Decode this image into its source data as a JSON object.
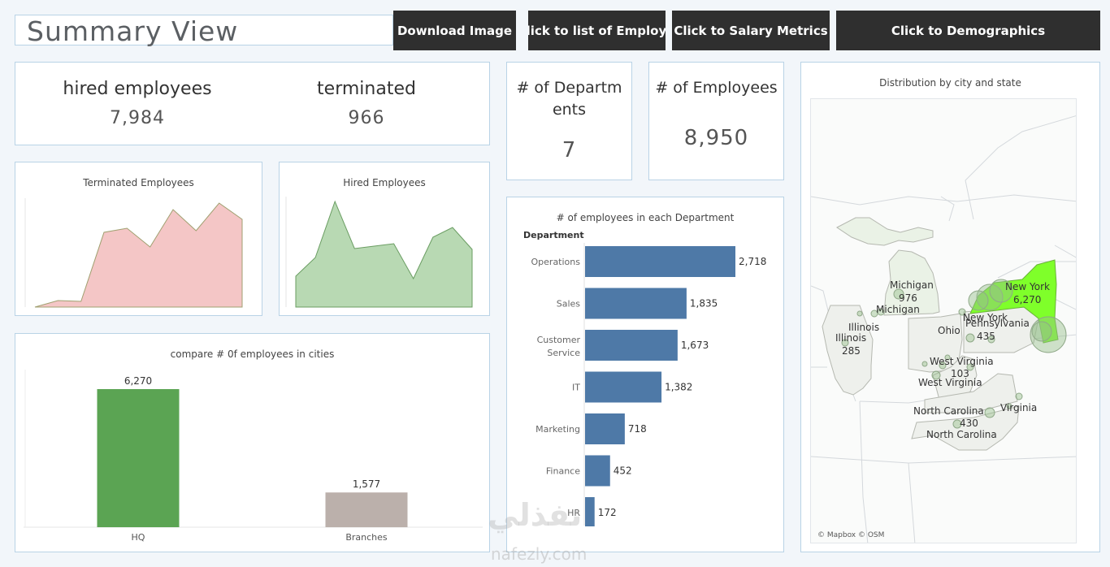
{
  "header": {
    "title": "Summary View",
    "buttons": [
      {
        "label": "Download Image"
      },
      {
        "label": "click to list of Employ.."
      },
      {
        "label": "Click to Salary Metrics"
      },
      {
        "label": "Click to Demographics"
      }
    ]
  },
  "kpis": {
    "hired_label": "hired employees",
    "hired_value": "7,984",
    "terminated_label": "terminated",
    "terminated_value": "966",
    "departments_label_line1": "# of Departm",
    "departments_label_line2": "ents",
    "departments_value": "7",
    "employees_label": "# of Employees",
    "employees_value": "8,950"
  },
  "chart_data": [
    {
      "type": "area",
      "title": "Terminated Employees",
      "values": [
        0,
        8,
        7,
        92,
        97,
        74,
        120,
        94,
        128,
        108
      ],
      "color": "#f4c6c6",
      "stroke": "#a0a070"
    },
    {
      "type": "area",
      "title": "Hired Employees",
      "values": [
        38,
        61,
        130,
        72,
        75,
        78,
        35,
        86,
        98,
        71
      ],
      "color": "#b8d9b3",
      "stroke": "#6a9d62"
    },
    {
      "type": "bar",
      "title": "compare # 0f employees in cities",
      "categories": [
        "HQ",
        "Branches"
      ],
      "values": [
        6270,
        1577
      ],
      "value_labels": [
        "6,270",
        "1,577"
      ],
      "colors": [
        "#5ba453",
        "#bbb0ab"
      ]
    },
    {
      "type": "bar",
      "orientation": "horizontal",
      "title": "# of employees in each Department",
      "axis_header": "Department",
      "categories": [
        "Operations",
        "Sales",
        "Customer Service",
        "IT",
        "Marketing",
        "Finance",
        "HR"
      ],
      "values": [
        2718,
        1835,
        1673,
        1382,
        718,
        452,
        172
      ],
      "value_labels": [
        "2,718",
        "1,835",
        "1,673",
        "1,382",
        "718",
        "452",
        "172"
      ],
      "color": "#4e79a7"
    }
  ],
  "map": {
    "title": "Distribution by city and state",
    "attribution": "© Mapbox © OSM",
    "highlight_color": "#7fff2a",
    "labels": [
      {
        "text": "Michigan"
      },
      {
        "text": "976"
      },
      {
        "text": "Michigan"
      },
      {
        "text": "Illinois"
      },
      {
        "text": "Illinois"
      },
      {
        "text": "285"
      },
      {
        "text": "Ohio"
      },
      {
        "text": "New York"
      },
      {
        "text": "6,270"
      },
      {
        "text": "New York"
      },
      {
        "text": "Pennsylvania"
      },
      {
        "text": "435"
      },
      {
        "text": "West Virginia"
      },
      {
        "text": "103"
      },
      {
        "text": "West Virginia"
      },
      {
        "text": "Virginia"
      },
      {
        "text": "North Carolina"
      },
      {
        "text": "430"
      },
      {
        "text": "North Carolina"
      }
    ]
  },
  "watermark": {
    "arabic": "نفذلي",
    "latin": "nafezly.com"
  }
}
